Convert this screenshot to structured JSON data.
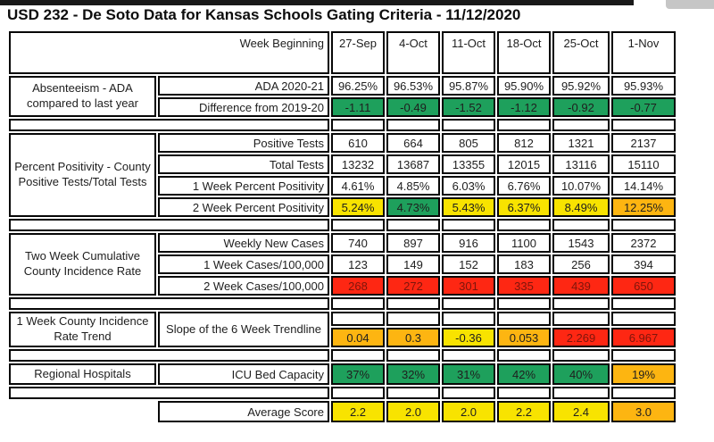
{
  "page_title": "USD 232 - De Soto Data for Kansas Schools Gating Criteria - 11/12/2020",
  "palette": {
    "white": "#ffffff",
    "green": "#1ea05c",
    "yellow": "#f8e300",
    "orange": "#fdb511",
    "red": "#fe2713",
    "text": "#1e1e1e",
    "red_text": "#7e150b"
  },
  "header": {
    "label": "Week Beginning",
    "weeks": [
      "27-Sep",
      "4-Oct",
      "11-Oct",
      "18-Oct",
      "25-Oct",
      "1-Nov"
    ]
  },
  "sections": [
    {
      "label": "Absenteeism - ADA compared to last year",
      "rows": [
        {
          "label": "ADA 2020-21",
          "cells": [
            {
              "v": "96.25%",
              "c": "white"
            },
            {
              "v": "96.53%",
              "c": "white"
            },
            {
              "v": "95.87%",
              "c": "white"
            },
            {
              "v": "95.90%",
              "c": "white"
            },
            {
              "v": "95.92%",
              "c": "white"
            },
            {
              "v": "95.93%",
              "c": "white"
            }
          ]
        },
        {
          "label": "Difference from 2019-20",
          "cells": [
            {
              "v": "-1.11",
              "c": "green"
            },
            {
              "v": "-0.49",
              "c": "green"
            },
            {
              "v": "-1.52",
              "c": "green"
            },
            {
              "v": "-1.12",
              "c": "green"
            },
            {
              "v": "-0.92",
              "c": "green"
            },
            {
              "v": "-0.77",
              "c": "green"
            }
          ]
        }
      ]
    },
    {
      "label": "Percent Positivity - County Positive Tests/Total Tests",
      "rows": [
        {
          "label": "Positive Tests",
          "cells": [
            {
              "v": "610",
              "c": "white"
            },
            {
              "v": "664",
              "c": "white"
            },
            {
              "v": "805",
              "c": "white"
            },
            {
              "v": "812",
              "c": "white"
            },
            {
              "v": "1321",
              "c": "white"
            },
            {
              "v": "2137",
              "c": "white"
            }
          ]
        },
        {
          "label": "Total Tests",
          "cells": [
            {
              "v": "13232",
              "c": "white"
            },
            {
              "v": "13687",
              "c": "white"
            },
            {
              "v": "13355",
              "c": "white"
            },
            {
              "v": "12015",
              "c": "white"
            },
            {
              "v": "13116",
              "c": "white"
            },
            {
              "v": "15110",
              "c": "white"
            }
          ]
        },
        {
          "label": "1 Week Percent Positivity",
          "cells": [
            {
              "v": "4.61%",
              "c": "white"
            },
            {
              "v": "4.85%",
              "c": "white"
            },
            {
              "v": "6.03%",
              "c": "white"
            },
            {
              "v": "6.76%",
              "c": "white"
            },
            {
              "v": "10.07%",
              "c": "white"
            },
            {
              "v": "14.14%",
              "c": "white"
            }
          ]
        },
        {
          "label": "2 Week Percent Positivity",
          "cells": [
            {
              "v": "5.24%",
              "c": "yellow"
            },
            {
              "v": "4.73%",
              "c": "green"
            },
            {
              "v": "5.43%",
              "c": "yellow"
            },
            {
              "v": "6.37%",
              "c": "yellow"
            },
            {
              "v": "8.49%",
              "c": "yellow"
            },
            {
              "v": "12.25%",
              "c": "orange"
            }
          ]
        }
      ]
    },
    {
      "label": "Two Week Cumulative County Incidence Rate",
      "rows": [
        {
          "label": "Weekly New Cases",
          "cells": [
            {
              "v": "740",
              "c": "white"
            },
            {
              "v": "897",
              "c": "white"
            },
            {
              "v": "916",
              "c": "white"
            },
            {
              "v": "1100",
              "c": "white"
            },
            {
              "v": "1543",
              "c": "white"
            },
            {
              "v": "2372",
              "c": "white"
            }
          ]
        },
        {
          "label": "1 Week Cases/100,000",
          "cells": [
            {
              "v": "123",
              "c": "white"
            },
            {
              "v": "149",
              "c": "white"
            },
            {
              "v": "152",
              "c": "white"
            },
            {
              "v": "183",
              "c": "white"
            },
            {
              "v": "256",
              "c": "white"
            },
            {
              "v": "394",
              "c": "white"
            }
          ]
        },
        {
          "label": "2 Week Cases/100,000",
          "cells": [
            {
              "v": "268",
              "c": "red"
            },
            {
              "v": "272",
              "c": "red"
            },
            {
              "v": "301",
              "c": "red"
            },
            {
              "v": "335",
              "c": "red"
            },
            {
              "v": "439",
              "c": "red"
            },
            {
              "v": "650",
              "c": "red"
            }
          ]
        }
      ]
    },
    {
      "label": "1 Week County Incidence Rate Trend",
      "rows": [
        {
          "label": "Slope of the 6 Week Trendline",
          "label_rowspan": 2,
          "label_align": "center",
          "short": true,
          "cells": [
            {
              "v": "",
              "c": "white"
            },
            {
              "v": "",
              "c": "white"
            },
            {
              "v": "",
              "c": "white"
            },
            {
              "v": "",
              "c": "white"
            },
            {
              "v": "",
              "c": "white"
            },
            {
              "v": "",
              "c": "white"
            }
          ]
        },
        {
          "cells": [
            {
              "v": "0.04",
              "c": "orange"
            },
            {
              "v": "0.3",
              "c": "orange"
            },
            {
              "v": "-0.36",
              "c": "yellow"
            },
            {
              "v": "0.053",
              "c": "orange"
            },
            {
              "v": "2.269",
              "c": "red"
            },
            {
              "v": "6.967",
              "c": "red"
            }
          ]
        }
      ]
    },
    {
      "label": "Regional Hospitals",
      "tall": true,
      "rows": [
        {
          "label": "ICU Bed Capacity",
          "cells": [
            {
              "v": "37%",
              "c": "green"
            },
            {
              "v": "32%",
              "c": "green"
            },
            {
              "v": "31%",
              "c": "green"
            },
            {
              "v": "42%",
              "c": "green"
            },
            {
              "v": "40%",
              "c": "green"
            },
            {
              "v": "19%",
              "c": "orange"
            }
          ]
        }
      ]
    }
  ],
  "average": {
    "label": "Average Score",
    "cells": [
      {
        "v": "2.2",
        "c": "yellow"
      },
      {
        "v": "2.0",
        "c": "yellow"
      },
      {
        "v": "2.0",
        "c": "yellow"
      },
      {
        "v": "2.2",
        "c": "yellow"
      },
      {
        "v": "2.4",
        "c": "yellow"
      },
      {
        "v": "3.0",
        "c": "orange"
      }
    ]
  }
}
